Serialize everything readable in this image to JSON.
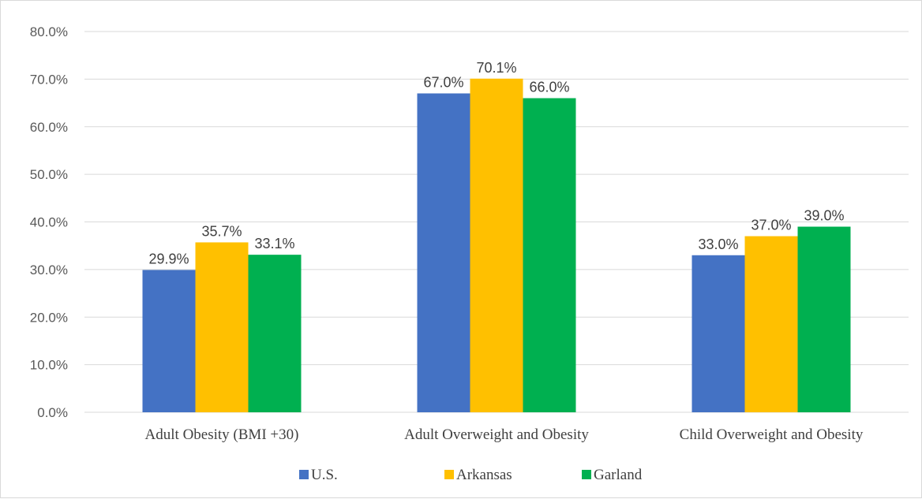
{
  "chart_data": {
    "type": "bar",
    "categories": [
      "Adult Obesity (BMI +30)",
      "Adult Overweight and Obesity",
      "Child Overweight and Obesity"
    ],
    "series": [
      {
        "name": "U.S.",
        "color": "#4472c4",
        "values": [
          29.9,
          67.0,
          33.0
        ]
      },
      {
        "name": "Arkansas",
        "color": "#ffc000",
        "values": [
          35.7,
          70.1,
          37.0
        ]
      },
      {
        "name": "Garland",
        "color": "#00b050",
        "values": [
          33.1,
          66.0,
          39.0
        ]
      }
    ],
    "ylim": [
      0,
      80
    ],
    "yticks": [
      0,
      10,
      20,
      30,
      40,
      50,
      60,
      70,
      80
    ],
    "value_format": "percent-1-decimal",
    "grid": true,
    "legend": "bottom"
  }
}
